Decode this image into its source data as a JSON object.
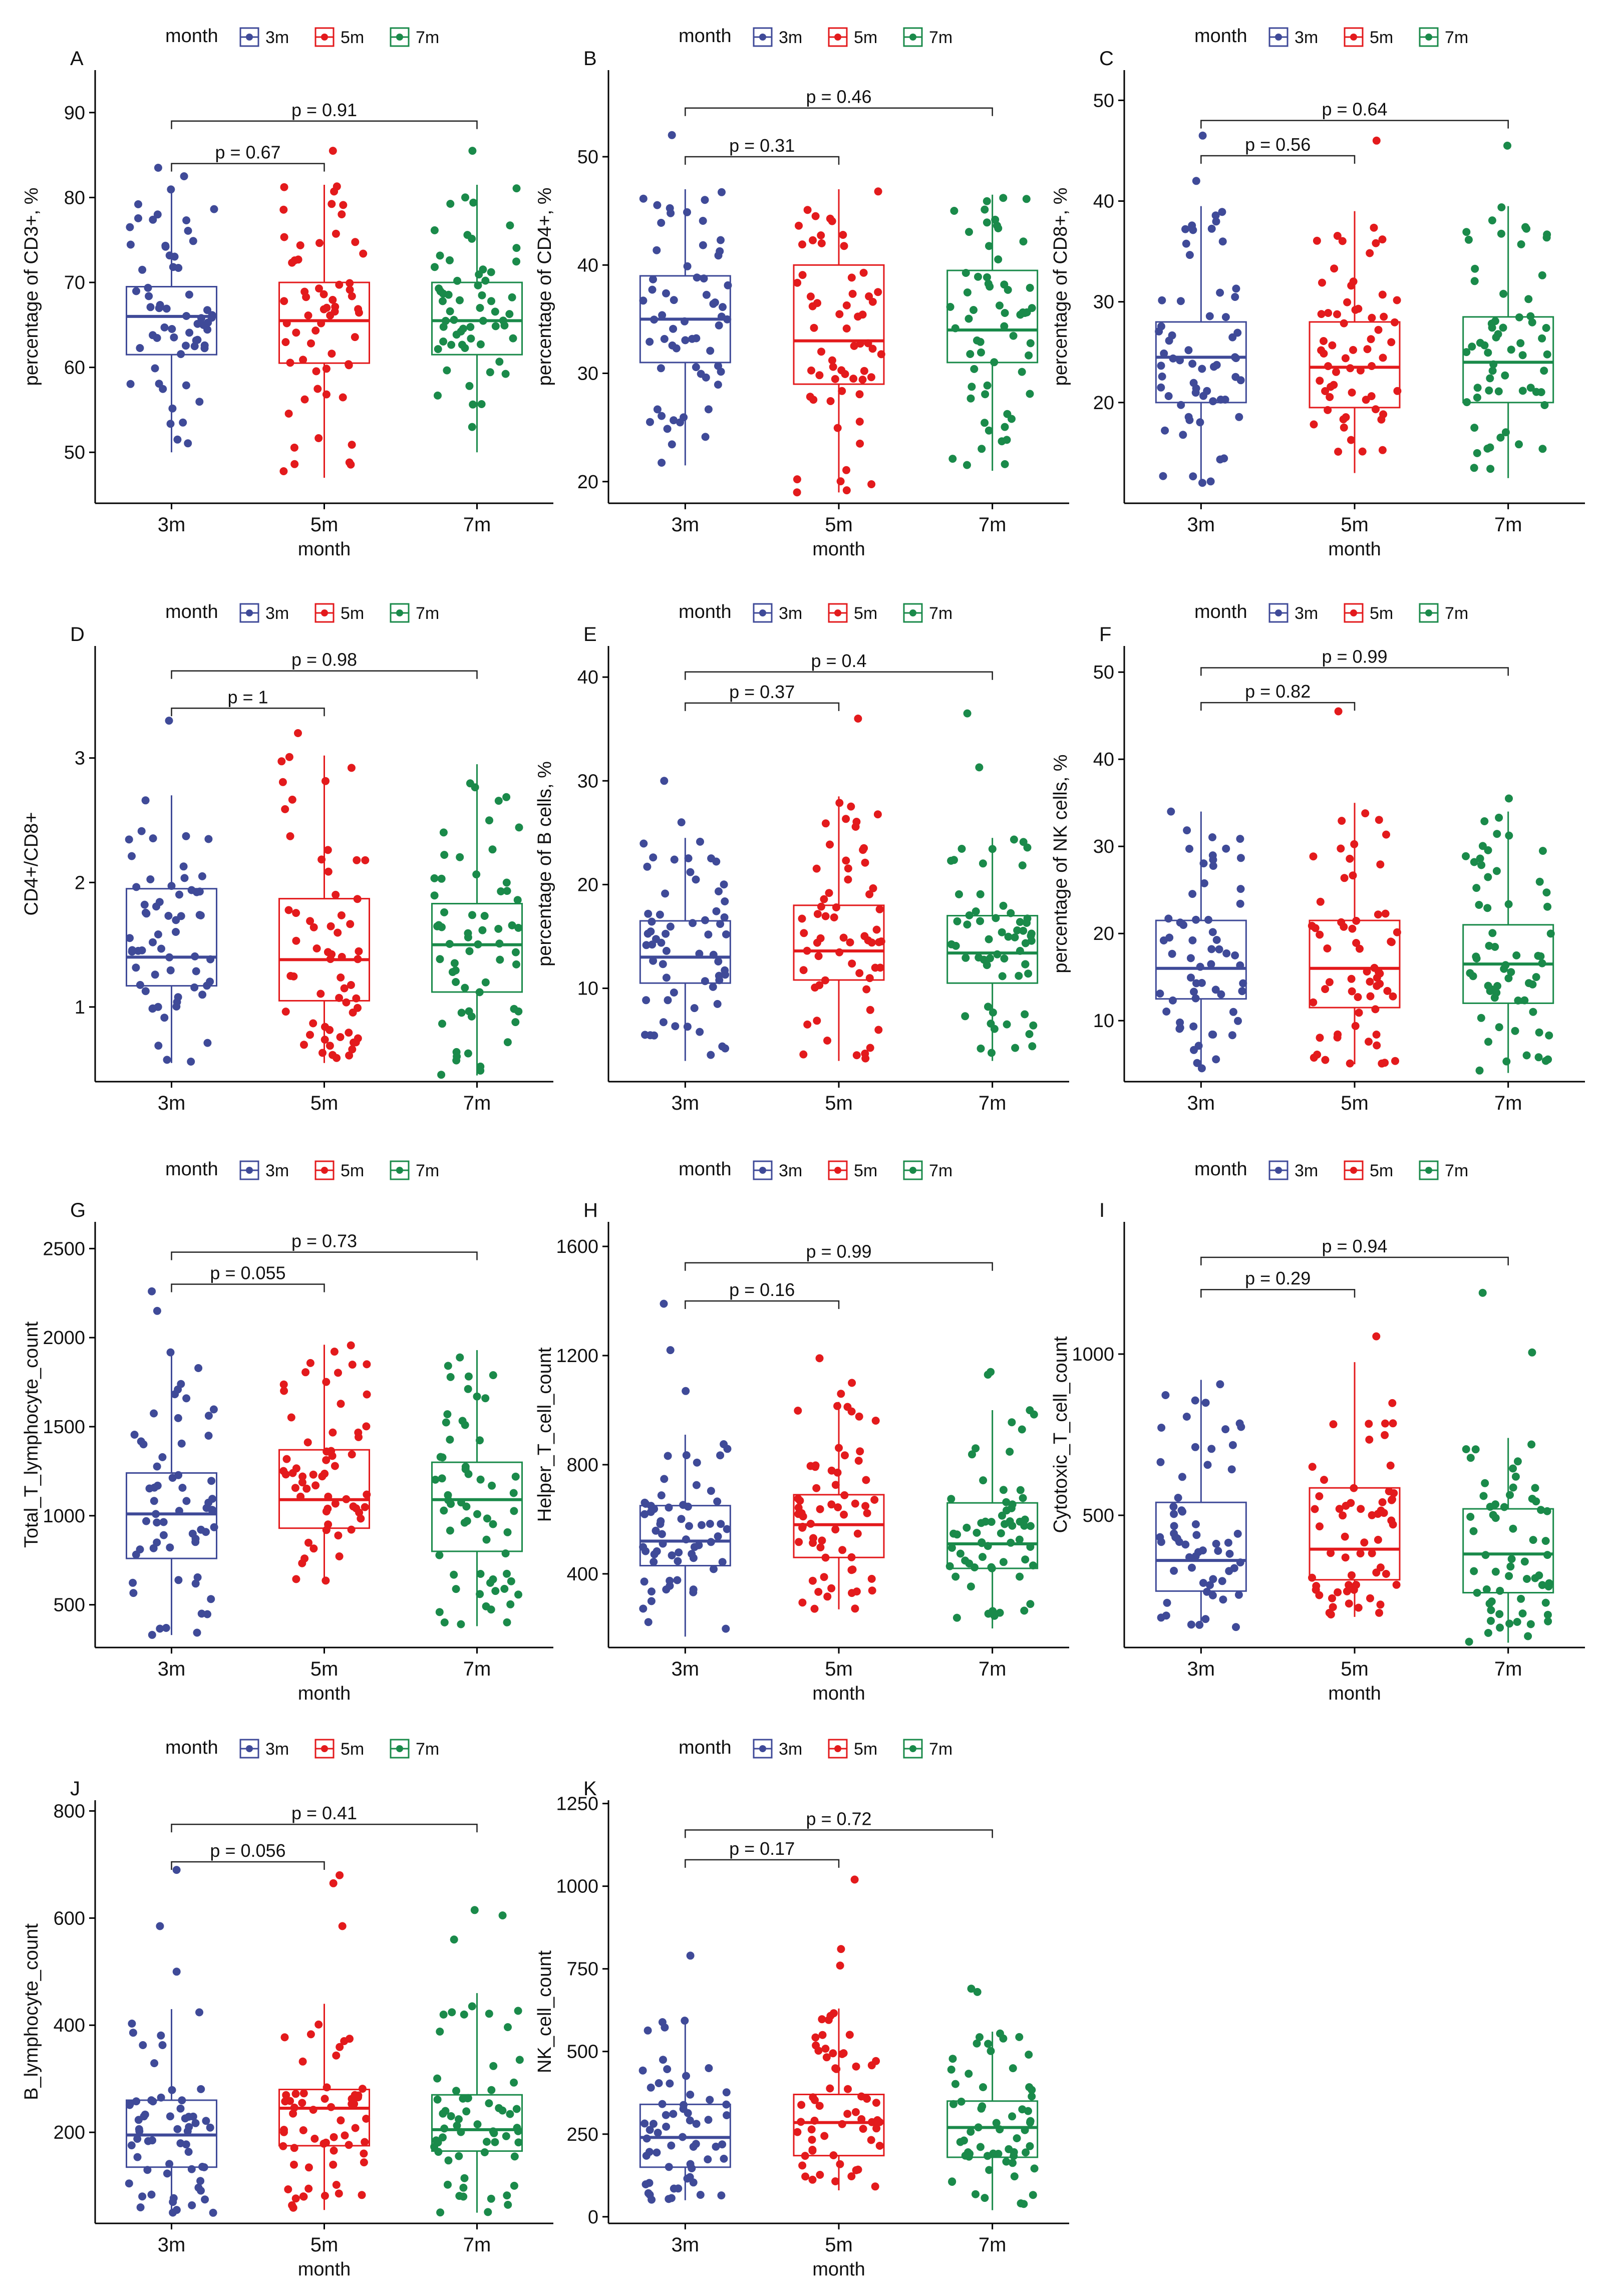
{
  "figure": {
    "legend_title": "month",
    "groups": [
      "3m",
      "5m",
      "7m"
    ],
    "group_colors": {
      "3m": "#3F4A98",
      "5m": "#E31A1C",
      "7m": "#1A8A4A"
    }
  },
  "chart_data": [
    {
      "type": "boxplot",
      "panel_label": "A",
      "ylabel": "percentage of CD3+, %",
      "xlabel": "month",
      "categories": [
        "3m",
        "5m",
        "7m"
      ],
      "ylim": [
        44,
        95
      ],
      "yticks": [
        50,
        60,
        70,
        80,
        90
      ],
      "boxes": [
        {
          "group": "3m",
          "q1": 61.5,
          "median": 66,
          "q3": 69.5,
          "whisker_low": 50,
          "whisker_high": 81
        },
        {
          "group": "5m",
          "q1": 60.5,
          "median": 65.5,
          "q3": 70,
          "whisker_low": 47,
          "whisker_high": 81.5
        },
        {
          "group": "7m",
          "q1": 61.5,
          "median": 65.5,
          "q3": 70,
          "whisker_low": 50,
          "whisker_high": 81.5
        }
      ],
      "outliers": [
        {
          "group": "3m",
          "values": [
            83.5,
            82.5
          ]
        },
        {
          "group": "5m",
          "values": [
            85.5
          ]
        },
        {
          "group": "7m",
          "values": [
            85.5
          ]
        }
      ],
      "comparisons": [
        {
          "from": "3m",
          "to": "5m",
          "label": "p = 0.67",
          "y": 84
        },
        {
          "from": "3m",
          "to": "7m",
          "label": "p = 0.91",
          "y": 89
        }
      ]
    },
    {
      "type": "boxplot",
      "panel_label": "B",
      "ylabel": "percentage of CD4+, %",
      "xlabel": "month",
      "categories": [
        "3m",
        "5m",
        "7m"
      ],
      "ylim": [
        18,
        58
      ],
      "yticks": [
        20,
        30,
        40,
        50
      ],
      "boxes": [
        {
          "group": "3m",
          "q1": 31,
          "median": 35,
          "q3": 39,
          "whisker_low": 21.5,
          "whisker_high": 47
        },
        {
          "group": "5m",
          "q1": 29,
          "median": 33,
          "q3": 40,
          "whisker_low": 19,
          "whisker_high": 47
        },
        {
          "group": "7m",
          "q1": 31,
          "median": 34,
          "q3": 39.5,
          "whisker_low": 21,
          "whisker_high": 46.5
        }
      ],
      "outliers": [
        {
          "group": "3m",
          "values": [
            52
          ]
        }
      ],
      "comparisons": [
        {
          "from": "3m",
          "to": "5m",
          "label": "p = 0.31",
          "y": 50
        },
        {
          "from": "3m",
          "to": "7m",
          "label": "p = 0.46",
          "y": 54.5
        }
      ]
    },
    {
      "type": "boxplot",
      "panel_label": "C",
      "ylabel": "percentage of CD8+, %",
      "xlabel": "month",
      "categories": [
        "3m",
        "5m",
        "7m"
      ],
      "ylim": [
        10,
        53
      ],
      "yticks": [
        20,
        30,
        40,
        50
      ],
      "boxes": [
        {
          "group": "3m",
          "q1": 20,
          "median": 24.5,
          "q3": 28,
          "whisker_low": 12,
          "whisker_high": 39.5
        },
        {
          "group": "5m",
          "q1": 19.5,
          "median": 23.5,
          "q3": 28,
          "whisker_low": 13,
          "whisker_high": 39
        },
        {
          "group": "7m",
          "q1": 20,
          "median": 24,
          "q3": 28.5,
          "whisker_low": 12.5,
          "whisker_high": 39.5
        }
      ],
      "outliers": [
        {
          "group": "3m",
          "values": [
            46.5,
            42
          ]
        },
        {
          "group": "5m",
          "values": [
            46
          ]
        },
        {
          "group": "7m",
          "values": [
            45.5
          ]
        }
      ],
      "comparisons": [
        {
          "from": "3m",
          "to": "5m",
          "label": "p = 0.56",
          "y": 44.5
        },
        {
          "from": "3m",
          "to": "7m",
          "label": "p = 0.64",
          "y": 48
        }
      ]
    },
    {
      "type": "boxplot",
      "panel_label": "D",
      "ylabel": "CD4+/CD8+",
      "xlabel": "",
      "categories": [
        "3m",
        "5m",
        "7m"
      ],
      "ylim": [
        0.4,
        3.9
      ],
      "yticks": [
        1,
        2,
        3
      ],
      "boxes": [
        {
          "group": "3m",
          "q1": 1.17,
          "median": 1.4,
          "q3": 1.95,
          "whisker_low": 0.55,
          "whisker_high": 2.7
        },
        {
          "group": "5m",
          "q1": 1.05,
          "median": 1.38,
          "q3": 1.87,
          "whisker_low": 0.55,
          "whisker_high": 3.02
        },
        {
          "group": "7m",
          "q1": 1.12,
          "median": 1.5,
          "q3": 1.83,
          "whisker_low": 0.45,
          "whisker_high": 2.95
        }
      ],
      "outliers": [
        {
          "group": "3m",
          "values": [
            3.3
          ]
        },
        {
          "group": "5m",
          "values": [
            3.2
          ]
        }
      ],
      "comparisons": [
        {
          "from": "3m",
          "to": "5m",
          "label": "p = 1",
          "y": 3.4
        },
        {
          "from": "3m",
          "to": "7m",
          "label": "p = 0.98",
          "y": 3.7
        }
      ]
    },
    {
      "type": "boxplot",
      "panel_label": "E",
      "ylabel": "percentage of B cells, %",
      "xlabel": "",
      "categories": [
        "3m",
        "5m",
        "7m"
      ],
      "ylim": [
        1,
        43
      ],
      "yticks": [
        10,
        20,
        30,
        40
      ],
      "boxes": [
        {
          "group": "3m",
          "q1": 10.5,
          "median": 13,
          "q3": 16.5,
          "whisker_low": 3,
          "whisker_high": 24.5
        },
        {
          "group": "5m",
          "q1": 10.8,
          "median": 13.6,
          "q3": 18,
          "whisker_low": 3,
          "whisker_high": 28.5
        },
        {
          "group": "7m",
          "q1": 10.5,
          "median": 13.4,
          "q3": 17,
          "whisker_low": 3,
          "whisker_high": 24.5
        }
      ],
      "outliers": [
        {
          "group": "3m",
          "values": [
            30,
            26
          ]
        },
        {
          "group": "5m",
          "values": [
            36
          ]
        },
        {
          "group": "7m",
          "values": [
            36.5,
            31.3
          ]
        }
      ],
      "comparisons": [
        {
          "from": "3m",
          "to": "5m",
          "label": "p = 0.37",
          "y": 37.5
        },
        {
          "from": "3m",
          "to": "7m",
          "label": "p = 0.4",
          "y": 40.5
        }
      ]
    },
    {
      "type": "boxplot",
      "panel_label": "F",
      "ylabel": "percentage of NK cells, %",
      "xlabel": "",
      "categories": [
        "3m",
        "5m",
        "7m"
      ],
      "ylim": [
        3,
        53
      ],
      "yticks": [
        10,
        20,
        30,
        40,
        50
      ],
      "boxes": [
        {
          "group": "3m",
          "q1": 12.5,
          "median": 16,
          "q3": 21.5,
          "whisker_low": 4.5,
          "whisker_high": 34
        },
        {
          "group": "5m",
          "q1": 11.5,
          "median": 16,
          "q3": 21.5,
          "whisker_low": 5,
          "whisker_high": 35
        },
        {
          "group": "7m",
          "q1": 12,
          "median": 16.5,
          "q3": 21,
          "whisker_low": 4,
          "whisker_high": 34
        }
      ],
      "outliers": [
        {
          "group": "5m",
          "values": [
            45.5
          ]
        },
        {
          "group": "7m",
          "values": [
            35.5
          ]
        }
      ],
      "comparisons": [
        {
          "from": "3m",
          "to": "5m",
          "label": "p = 0.82",
          "y": 46.5
        },
        {
          "from": "3m",
          "to": "7m",
          "label": "p = 0.99",
          "y": 50.5
        }
      ]
    },
    {
      "type": "boxplot",
      "panel_label": "G",
      "ylabel": "Total_T_lymphocyte_count",
      "xlabel": "month",
      "categories": [
        "3m",
        "5m",
        "7m"
      ],
      "ylim": [
        260,
        2650
      ],
      "yticks": [
        500,
        1000,
        1500,
        2000,
        2500
      ],
      "boxes": [
        {
          "group": "3m",
          "q1": 760,
          "median": 1010,
          "q3": 1240,
          "whisker_low": 330,
          "whisker_high": 1920
        },
        {
          "group": "5m",
          "q1": 930,
          "median": 1090,
          "q3": 1370,
          "whisker_low": 620,
          "whisker_high": 1960
        },
        {
          "group": "7m",
          "q1": 800,
          "median": 1090,
          "q3": 1300,
          "whisker_low": 380,
          "whisker_high": 1930
        }
      ],
      "outliers": [
        {
          "group": "3m",
          "values": [
            2260,
            2150
          ]
        }
      ],
      "comparisons": [
        {
          "from": "3m",
          "to": "5m",
          "label": "p = 0.055",
          "y": 2300
        },
        {
          "from": "3m",
          "to": "7m",
          "label": "p = 0.73",
          "y": 2480
        }
      ]
    },
    {
      "type": "boxplot",
      "panel_label": "H",
      "ylabel": "Helper_T_cell_count",
      "xlabel": "month",
      "categories": [
        "3m",
        "5m",
        "7m"
      ],
      "ylim": [
        130,
        1690
      ],
      "yticks": [
        400,
        800,
        1200,
        1600
      ],
      "boxes": [
        {
          "group": "3m",
          "q1": 430,
          "median": 520,
          "q3": 650,
          "whisker_low": 170,
          "whisker_high": 910
        },
        {
          "group": "5m",
          "q1": 460,
          "median": 580,
          "q3": 690,
          "whisker_low": 270,
          "whisker_high": 1030
        },
        {
          "group": "7m",
          "q1": 420,
          "median": 510,
          "q3": 660,
          "whisker_low": 200,
          "whisker_high": 1000
        }
      ],
      "outliers": [
        {
          "group": "3m",
          "values": [
            1390,
            1220,
            1070
          ]
        },
        {
          "group": "5m",
          "values": [
            1190,
            1100,
            1060
          ]
        },
        {
          "group": "7m",
          "values": [
            1140,
            1130
          ]
        }
      ],
      "comparisons": [
        {
          "from": "3m",
          "to": "5m",
          "label": "p = 0.16",
          "y": 1400
        },
        {
          "from": "3m",
          "to": "7m",
          "label": "p = 0.99",
          "y": 1540
        }
      ]
    },
    {
      "type": "boxplot",
      "panel_label": "I",
      "ylabel": "Cytotoxic_T_cell_count",
      "xlabel": "month",
      "categories": [
        "3m",
        "5m",
        "7m"
      ],
      "ylim": [
        90,
        1410
      ],
      "yticks": [
        500,
        1000
      ],
      "boxes": [
        {
          "group": "3m",
          "q1": 265,
          "median": 360,
          "q3": 540,
          "whisker_low": 150,
          "whisker_high": 920
        },
        {
          "group": "5m",
          "q1": 300,
          "median": 395,
          "q3": 585,
          "whisker_low": 185,
          "whisker_high": 975
        },
        {
          "group": "7m",
          "q1": 260,
          "median": 380,
          "q3": 520,
          "whisker_low": 105,
          "whisker_high": 740
        }
      ],
      "outliers": [
        {
          "group": "5m",
          "values": [
            1055
          ]
        },
        {
          "group": "7m",
          "values": [
            1190,
            1005
          ]
        }
      ],
      "comparisons": [
        {
          "from": "3m",
          "to": "5m",
          "label": "p = 0.29",
          "y": 1200
        },
        {
          "from": "3m",
          "to": "7m",
          "label": "p = 0.94",
          "y": 1300
        }
      ]
    },
    {
      "type": "boxplot",
      "panel_label": "J",
      "ylabel": "B_lymphocyte_count",
      "xlabel": "month",
      "categories": [
        "3m",
        "5m",
        "7m"
      ],
      "ylim": [
        30,
        820
      ],
      "yticks": [
        200,
        400,
        600,
        800
      ],
      "boxes": [
        {
          "group": "3m",
          "q1": 135,
          "median": 195,
          "q3": 260,
          "whisker_low": 45,
          "whisker_high": 430
        },
        {
          "group": "5m",
          "q1": 175,
          "median": 245,
          "q3": 280,
          "whisker_low": 55,
          "whisker_high": 440
        },
        {
          "group": "7m",
          "q1": 165,
          "median": 205,
          "q3": 270,
          "whisker_low": 50,
          "whisker_high": 460
        }
      ],
      "outliers": [
        {
          "group": "3m",
          "values": [
            690,
            585,
            500
          ]
        },
        {
          "group": "5m",
          "values": [
            680,
            665,
            585
          ]
        },
        {
          "group": "7m",
          "values": [
            615,
            605,
            560
          ]
        }
      ],
      "comparisons": [
        {
          "from": "3m",
          "to": "5m",
          "label": "p = 0.056",
          "y": 705
        },
        {
          "from": "3m",
          "to": "7m",
          "label": "p = 0.41",
          "y": 775
        }
      ]
    },
    {
      "type": "boxplot",
      "panel_label": "K",
      "ylabel": "NK_cell_count",
      "xlabel": "month",
      "categories": [
        "3m",
        "5m",
        "7m"
      ],
      "ylim": [
        -20,
        1260
      ],
      "yticks": [
        0,
        250,
        500,
        750,
        1000,
        1250
      ],
      "boxes": [
        {
          "group": "3m",
          "q1": 150,
          "median": 240,
          "q3": 340,
          "whisker_low": 50,
          "whisker_high": 600
        },
        {
          "group": "5m",
          "q1": 185,
          "median": 285,
          "q3": 370,
          "whisker_low": 80,
          "whisker_high": 630
        },
        {
          "group": "7m",
          "q1": 180,
          "median": 270,
          "q3": 350,
          "whisker_low": 20,
          "whisker_high": 560
        }
      ],
      "outliers": [
        {
          "group": "3m",
          "values": [
            790
          ]
        },
        {
          "group": "5m",
          "values": [
            1020,
            810,
            760
          ]
        },
        {
          "group": "7m",
          "values": [
            690,
            680
          ]
        }
      ],
      "comparisons": [
        {
          "from": "3m",
          "to": "5m",
          "label": "p = 0.17",
          "y": 1080
        },
        {
          "from": "3m",
          "to": "7m",
          "label": "p = 0.72",
          "y": 1170
        }
      ]
    }
  ]
}
